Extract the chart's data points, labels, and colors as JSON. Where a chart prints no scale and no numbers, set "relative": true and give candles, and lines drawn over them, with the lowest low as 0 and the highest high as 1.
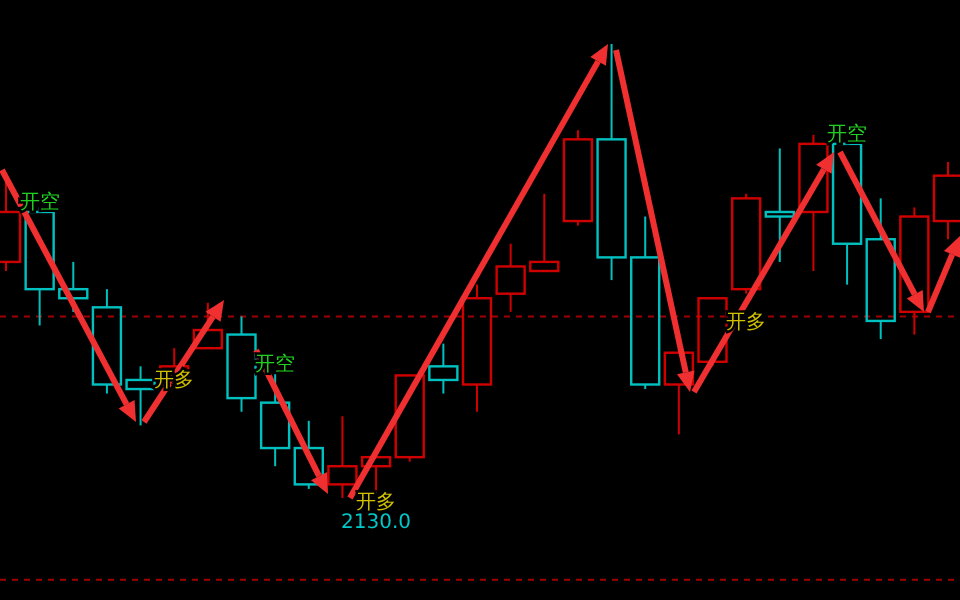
{
  "chart_data": {
    "type": "candlestick",
    "relative": true,
    "categories": [
      null,
      null,
      null,
      null,
      null,
      null,
      null,
      null,
      null,
      null,
      null,
      null,
      null,
      null,
      null,
      null,
      null,
      null,
      null,
      null,
      null,
      null,
      null,
      null,
      null,
      null,
      null,
      null,
      null
    ],
    "ohlc": [
      [
        0.52,
        0.7,
        0.5,
        0.63
      ],
      [
        0.63,
        0.64,
        0.38,
        0.46
      ],
      [
        0.46,
        0.52,
        0.41,
        0.44
      ],
      [
        0.42,
        0.46,
        0.23,
        0.25
      ],
      [
        0.26,
        0.29,
        0.16,
        0.24
      ],
      [
        0.25,
        0.33,
        0.24,
        0.29
      ],
      [
        0.33,
        0.43,
        0.33,
        0.37
      ],
      [
        0.36,
        0.4,
        0.19,
        0.22
      ],
      [
        0.21,
        0.28,
        0.07,
        0.11
      ],
      [
        0.11,
        0.17,
        0.02,
        0.03
      ],
      [
        0.03,
        0.18,
        0,
        0.07
      ],
      [
        0.07,
        0.1,
        0.01,
        0.09
      ],
      [
        0.09,
        0.27,
        0.08,
        0.27
      ],
      [
        0.29,
        0.34,
        0.23,
        0.26
      ],
      [
        0.25,
        0.47,
        0.19,
        0.44
      ],
      [
        0.45,
        0.56,
        0.41,
        0.51
      ],
      [
        0.5,
        0.67,
        0.5,
        0.52
      ],
      [
        0.61,
        0.81,
        0.6,
        0.79
      ],
      [
        0.79,
        1,
        0.48,
        0.53
      ],
      [
        0.53,
        0.62,
        0.24,
        0.25
      ],
      [
        0.25,
        0.33,
        0.14,
        0.32
      ],
      [
        0.3,
        0.44,
        0.29,
        0.44
      ],
      [
        0.46,
        0.67,
        0.45,
        0.66
      ],
      [
        0.63,
        0.77,
        0.52,
        0.62
      ],
      [
        0.63,
        0.8,
        0.5,
        0.78
      ],
      [
        0.78,
        0.79,
        0.47,
        0.56
      ],
      [
        0.57,
        0.66,
        0.35,
        0.39
      ],
      [
        0.41,
        0.64,
        0.36,
        0.62
      ],
      [
        0.61,
        0.74,
        0.57,
        0.71
      ]
    ],
    "colors": [
      "#d00000",
      "#00c0c0",
      "#00c0c0",
      "#00c0c0",
      "#00c0c0",
      "#d00000",
      "#d00000",
      "#00c0c0",
      "#00c0c0",
      "#00c0c0",
      "#d00000",
      "#d00000",
      "#d00000",
      "#00c0c0",
      "#d00000",
      "#d00000",
      "#d00000",
      "#d00000",
      "#00c0c0",
      "#00c0c0",
      "#d00000",
      "#d00000",
      "#d00000",
      "#00c0c0",
      "#d00000",
      "#00c0c0",
      "#00c0c0",
      "#d00000",
      "#d00000"
    ],
    "ref_lines": [
      {
        "axis": "y",
        "value": 0.4,
        "color": "#a00000",
        "line_style": "dashed"
      },
      {
        "axis": "y",
        "value": -0.18,
        "color": "#a00000",
        "line_style": "dashed"
      }
    ],
    "annotations": [
      "开空",
      "开多",
      "开空",
      "开多",
      {
        "text": "2130.0",
        "y": 0
      },
      "开多",
      "开空"
    ]
  }
}
